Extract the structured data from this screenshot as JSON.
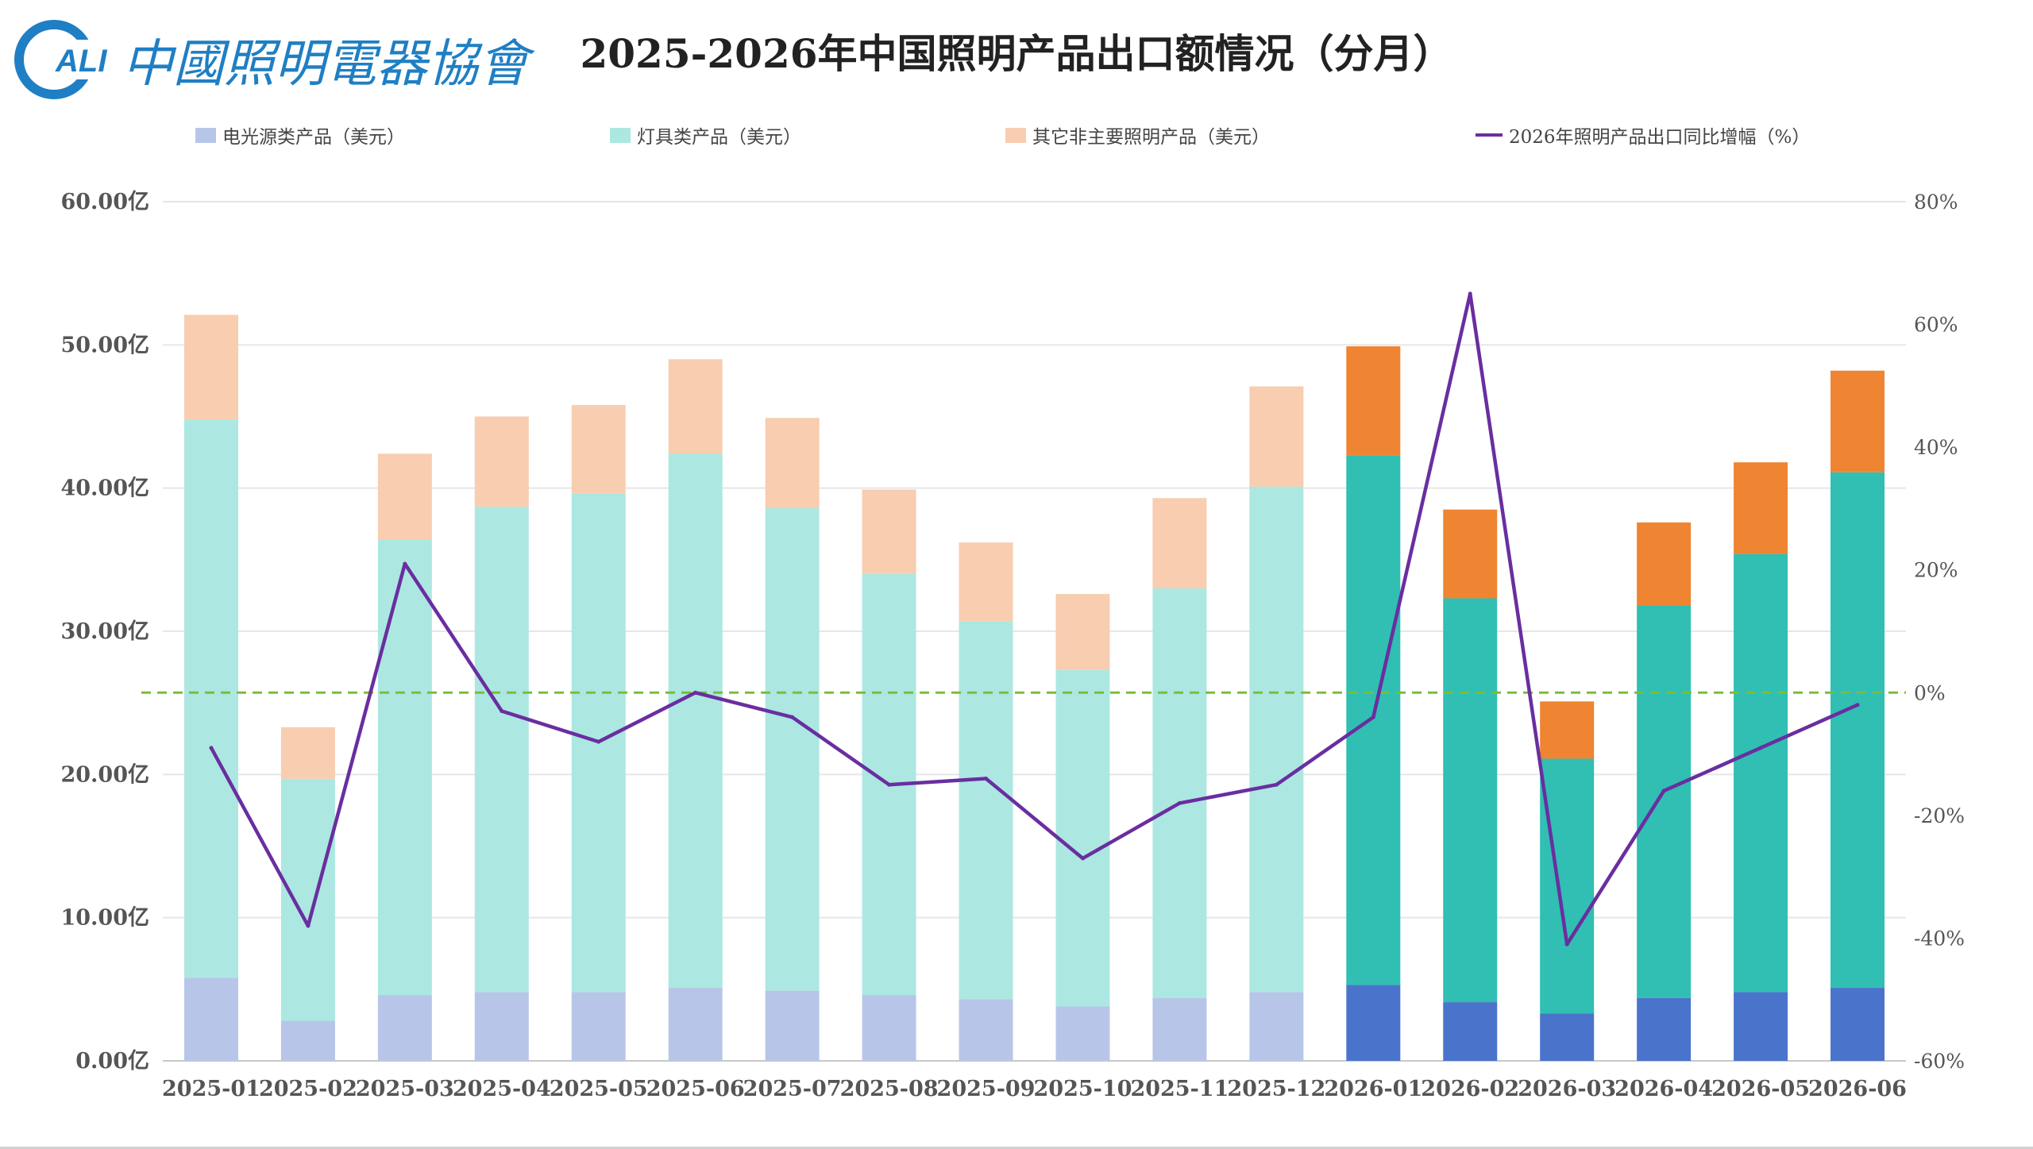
{
  "title": "2025-2026年中国照明产品出口额情况（分月）",
  "logo": {
    "badge": "ALI",
    "org_name": "中國照明電器協會"
  },
  "colors": {
    "light_source_2025": "#b7c6e8",
    "fixture_2025": "#ace8e1",
    "other_2025": "#f8cdb0",
    "light_source_2026": "#4a74cc",
    "fixture_2026": "#30bfb2",
    "other_2026": "#ef8432",
    "growth_line": "#6a2ea0",
    "zero_line": "#7bbd3a",
    "logo": "#1f7fc4"
  },
  "legend": [
    {
      "label": "电光源类产品（美元）",
      "type": "box",
      "color": "#b7c6e8"
    },
    {
      "label": "灯具类产品（美元）",
      "type": "box",
      "color": "#ace8e1"
    },
    {
      "label": "其它非主要照明产品（美元）",
      "type": "box",
      "color": "#f8cdb0"
    },
    {
      "label": "2026年照明产品出口同比增幅（%）",
      "type": "line",
      "color": "#6a2ea0"
    }
  ],
  "chart_data": {
    "type": "bar",
    "stacked": true,
    "categories": [
      "2025-01",
      "2025-02",
      "2025-03",
      "2025-04",
      "2025-05",
      "2025-06",
      "2025-07",
      "2025-08",
      "2025-09",
      "2025-10",
      "2025-11",
      "2025-12",
      "2026-01",
      "2026-02",
      "2026-03",
      "2026-04",
      "2026-05",
      "2026-06"
    ],
    "series": [
      {
        "name": "电光源类产品（美元）",
        "axis": "left",
        "unit": "亿",
        "values": [
          5.8,
          2.8,
          4.6,
          4.8,
          4.8,
          5.1,
          4.9,
          4.6,
          4.3,
          3.8,
          4.4,
          4.8,
          5.3,
          4.1,
          3.3,
          4.4,
          4.8,
          5.1
        ]
      },
      {
        "name": "灯具类产品（美元）",
        "axis": "left",
        "unit": "亿",
        "values": [
          39.0,
          16.9,
          31.8,
          33.9,
          34.8,
          37.3,
          33.7,
          29.4,
          26.4,
          23.5,
          28.6,
          35.3,
          37.0,
          28.2,
          17.8,
          27.4,
          30.6,
          36.0
        ]
      },
      {
        "name": "其它非主要照明产品（美元）",
        "axis": "left",
        "unit": "亿",
        "values": [
          7.3,
          3.6,
          6.0,
          6.3,
          6.2,
          6.6,
          6.3,
          5.9,
          5.5,
          5.3,
          6.3,
          7.0,
          7.6,
          6.2,
          4.0,
          5.8,
          6.4,
          7.1
        ]
      },
      {
        "name": "2026年照明产品出口同比增幅（%）",
        "type": "line",
        "axis": "right",
        "unit": "%",
        "values": [
          -9,
          -38,
          21,
          -3,
          -8,
          0,
          -4,
          -15,
          -14,
          -27,
          -18,
          -15,
          -4,
          65,
          -41,
          -16,
          -9,
          -2
        ]
      }
    ],
    "reference_line": {
      "axis": "right",
      "value": 0,
      "style": "dashed"
    },
    "y_left": {
      "min": 0,
      "max": 60,
      "ticks": [
        "0.00亿",
        "10.00亿",
        "20.00亿",
        "30.00亿",
        "40.00亿",
        "50.00亿",
        "60.00亿"
      ]
    },
    "y_right": {
      "min": -60,
      "max": 80,
      "ticks": [
        "-60%",
        "-40%",
        "-20%",
        "0%",
        "20%",
        "40%",
        "60%",
        "80%"
      ]
    },
    "grid": true,
    "legend_position": "top"
  }
}
